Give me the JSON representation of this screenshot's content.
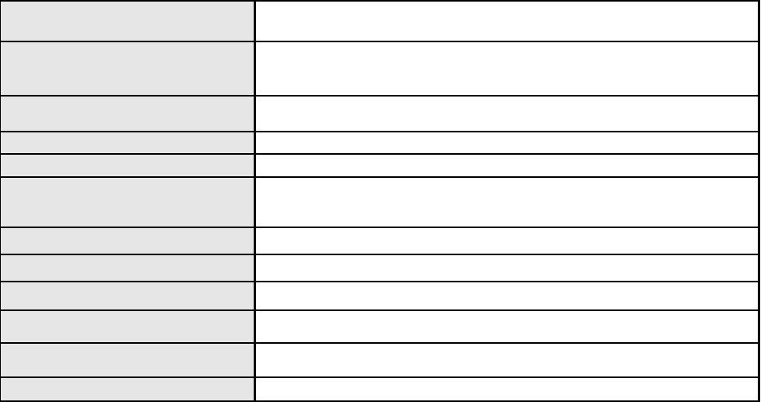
{
  "table": {
    "rows": [
      {
        "label": "",
        "value": ""
      },
      {
        "label": "",
        "value": ""
      },
      {
        "label": "",
        "value": ""
      },
      {
        "label": "",
        "value": ""
      },
      {
        "label": "",
        "value": ""
      },
      {
        "label": "",
        "value": ""
      },
      {
        "label": "",
        "value": ""
      },
      {
        "label": "",
        "value": ""
      },
      {
        "label": "",
        "value": ""
      },
      {
        "label": "",
        "value": ""
      },
      {
        "label": "",
        "value": ""
      },
      {
        "label": "",
        "value": ""
      }
    ],
    "colors": {
      "label_bg": "#e6e6e6",
      "value_bg": "#ffffff",
      "border": "#000000"
    }
  }
}
